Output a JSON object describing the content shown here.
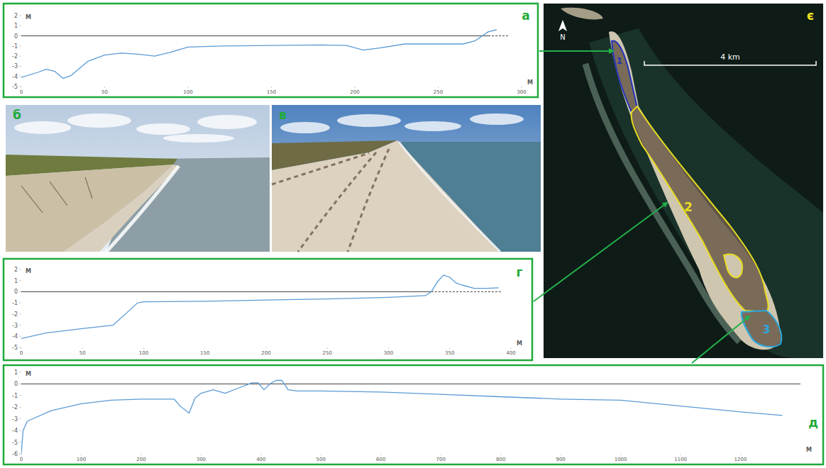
{
  "chart_data": [
    {
      "type": "line",
      "label": "а",
      "x_label": "М",
      "y_label": "М",
      "xlim": [
        0,
        300
      ],
      "xticks": [
        0,
        50,
        100,
        150,
        200,
        250,
        300
      ],
      "ylim": [
        -5,
        2
      ],
      "yticks": [
        2,
        1,
        0,
        -1,
        -2,
        -3,
        -4,
        -5
      ],
      "x": [
        0,
        10,
        15,
        20,
        25,
        30,
        40,
        50,
        60,
        70,
        80,
        90,
        100,
        120,
        150,
        180,
        195,
        205,
        215,
        230,
        250,
        265,
        272,
        280,
        285
      ],
      "values": [
        -4.1,
        -3.6,
        -3.3,
        -3.5,
        -4.2,
        -3.9,
        -2.5,
        -1.9,
        -1.7,
        -1.8,
        -2.0,
        -1.6,
        -1.1,
        -1.0,
        -0.95,
        -0.9,
        -0.95,
        -1.4,
        -1.2,
        -0.8,
        -0.8,
        -0.8,
        -0.5,
        0.4,
        0.6
      ],
      "color": "#5b9bd5",
      "reference_line": {
        "y": 0,
        "dashed_from": 280,
        "dashed_to": 292
      }
    },
    {
      "type": "line",
      "label": "г",
      "x_label": "М",
      "y_label": "М",
      "xlim": [
        0,
        400
      ],
      "xticks": [
        0,
        50,
        100,
        150,
        200,
        250,
        300,
        350,
        400
      ],
      "ylim": [
        -5,
        2
      ],
      "yticks": [
        2,
        1,
        0,
        -1,
        -2,
        -3,
        -4,
        -5
      ],
      "x": [
        0,
        20,
        50,
        75,
        85,
        95,
        100,
        150,
        200,
        250,
        300,
        330,
        335,
        340,
        345,
        350,
        355,
        360,
        370,
        380,
        390
      ],
      "values": [
        -4.2,
        -3.7,
        -3.3,
        -3.0,
        -2.0,
        -1.0,
        -0.9,
        -0.85,
        -0.75,
        -0.65,
        -0.5,
        -0.35,
        0,
        0.9,
        1.5,
        1.3,
        0.8,
        0.6,
        0.3,
        0.3,
        0.35
      ],
      "color": "#5b9bd5",
      "reference_line": {
        "y": 0,
        "dashed_from": 335,
        "dashed_to": 392
      }
    },
    {
      "type": "line",
      "label": "д",
      "x_label": "М",
      "y_label": "М",
      "xlim": [
        0,
        1300
      ],
      "xticks": [
        0,
        100,
        200,
        300,
        400,
        500,
        600,
        700,
        800,
        900,
        1000,
        1100,
        1200
      ],
      "ylim": [
        -6,
        1
      ],
      "yticks": [
        1,
        0,
        -1,
        -2,
        -3,
        -4,
        -5,
        -6
      ],
      "x": [
        0,
        3,
        10,
        50,
        100,
        150,
        200,
        255,
        265,
        280,
        290,
        300,
        320,
        340,
        360,
        385,
        395,
        405,
        415,
        425,
        435,
        445,
        460,
        500,
        600,
        700,
        800,
        900,
        1000,
        1100,
        1200,
        1270
      ],
      "values": [
        -6,
        -4,
        -3.2,
        -2.3,
        -1.7,
        -1.4,
        -1.3,
        -1.3,
        -1.9,
        -2.5,
        -1.2,
        -0.8,
        -0.5,
        -0.8,
        -0.4,
        0.1,
        0.1,
        -0.5,
        0.0,
        0.3,
        0.3,
        -0.5,
        -0.6,
        -0.6,
        -0.7,
        -0.9,
        -1.1,
        -1.3,
        -1.4,
        -1.9,
        -2.4,
        -2.7
      ],
      "color": "#5b9bd5",
      "reference_line": {
        "y": 0
      }
    }
  ],
  "photos": [
    {
      "label": "б"
    },
    {
      "label": "в"
    }
  ],
  "map": {
    "label": "є",
    "north": "N",
    "scale_bar": "4 km",
    "zones": [
      {
        "label": "1",
        "color": "#2233bb"
      },
      {
        "label": "2",
        "color": "#e8dc20"
      },
      {
        "label": "3",
        "color": "#2aa8e0"
      }
    ]
  }
}
